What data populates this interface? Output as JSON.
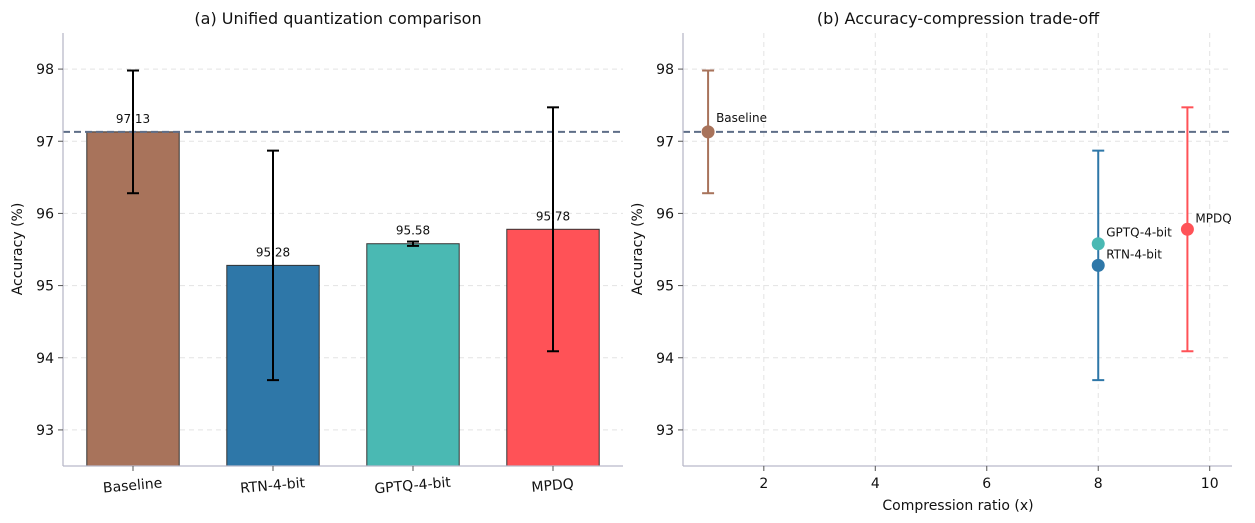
{
  "chart_data": [
    {
      "type": "bar",
      "title": "(a) Unified quantization comparison",
      "xlabel": "",
      "ylabel": "Accuracy (%)",
      "ylim": [
        92.5,
        98.5
      ],
      "yticks": [
        "93",
        "94",
        "95",
        "96",
        "97",
        "98"
      ],
      "grid": "y-dashed",
      "categories": [
        "Baseline",
        "RTN-4-bit",
        "GPTQ-4-bit",
        "MPDQ"
      ],
      "values": [
        97.13,
        95.28,
        95.58,
        95.78
      ],
      "value_labels": [
        "97.13",
        "95.28",
        "95.58",
        "95.78"
      ],
      "errors": [
        0.85,
        1.59,
        0.03,
        1.69
      ],
      "colors": [
        "#a8735b",
        "#2e77a8",
        "#4ab9b3",
        "#ff5257"
      ],
      "reference_line": 97.13
    },
    {
      "type": "scatter",
      "title": "(b) Accuracy-compression trade-off",
      "xlabel": "Compression ratio (x)",
      "ylabel": "Accuracy (%)",
      "xlim": [
        0.55,
        10.4
      ],
      "ylim": [
        92.5,
        98.5
      ],
      "xticks": [
        "2",
        "4",
        "6",
        "8",
        "10"
      ],
      "yticks": [
        "93",
        "94",
        "95",
        "96",
        "97",
        "98"
      ],
      "grid": "both-dashed",
      "points": [
        {
          "label": "Baseline",
          "x": 1.0,
          "y": 97.13,
          "err": 0.85,
          "color": "#a8735b"
        },
        {
          "label": "RTN-4-bit",
          "x": 8.0,
          "y": 95.28,
          "err": 1.59,
          "color": "#2e77a8"
        },
        {
          "label": "GPTQ-4-bit",
          "x": 8.0,
          "y": 95.58,
          "err": 0.03,
          "color": "#4ab9b3"
        },
        {
          "label": "MPDQ",
          "x": 9.6,
          "y": 95.78,
          "err": 1.69,
          "color": "#ff5257"
        }
      ],
      "reference_line": 97.13
    }
  ]
}
